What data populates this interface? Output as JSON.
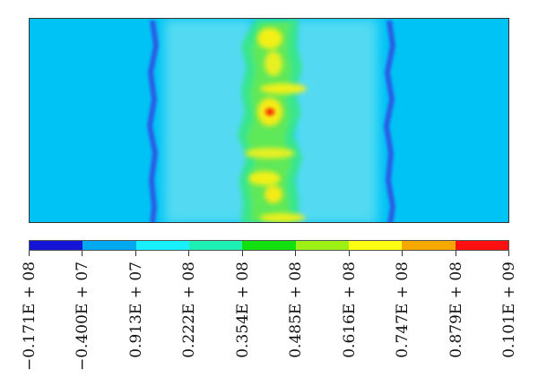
{
  "plot": {
    "background_color": "#00c3f5",
    "description_colors": {
      "low": "#1a2ee0",
      "band_light": "#7fe6f5",
      "mid": "#22e07a",
      "high": "#f6ef14",
      "peak": "#ff1a00"
    }
  },
  "legend": {
    "colors": [
      "#1414d6",
      "#00a8f0",
      "#18f0ff",
      "#1ef0b4",
      "#12e00e",
      "#9cf014",
      "#ffff14",
      "#f5a800",
      "#ff1010"
    ],
    "labels": [
      "−0.171E + 08",
      "−0.400E + 07",
      "0.913E + 07",
      "0.222E + 08",
      "0.354E + 08",
      "0.485E + 08",
      "0.616E + 08",
      "0.747E + 08",
      "0.879E + 08",
      "0.101E + 09"
    ]
  }
}
